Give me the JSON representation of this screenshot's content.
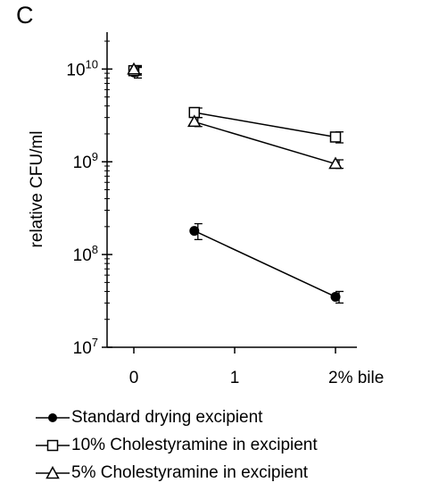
{
  "panel_label": "C",
  "chart_data": {
    "type": "line",
    "title": "",
    "xlabel": "",
    "ylabel": "relative CFU/ml",
    "y_scale": "log",
    "ylim": [
      10000000.0,
      25000000000.0
    ],
    "xlim": [
      -0.25,
      2.25
    ],
    "x_ticks": [
      0,
      1,
      2
    ],
    "x_tick_labels": [
      "0",
      "1",
      "2% bile"
    ],
    "y_ticks": [
      {
        "value": 10000000.0,
        "base": "10",
        "exp": "7"
      },
      {
        "value": 100000000.0,
        "base": "10",
        "exp": "8"
      },
      {
        "value": 1000000000.0,
        "base": "10",
        "exp": "9"
      },
      {
        "value": 10000000000.0,
        "base": "10",
        "exp": "10"
      }
    ],
    "grid": false,
    "legend_position": "bottom",
    "series": [
      {
        "name": "Standard drying excipient",
        "marker": "circle-filled",
        "points": [
          {
            "x": 0,
            "y": 9200000000.0
          },
          {
            "x": 0.6,
            "y": 180000000.0
          },
          {
            "x": 2,
            "y": 35000000.0
          }
        ],
        "err": [
          1200000000.0,
          35000000.0,
          5000000.0
        ]
      },
      {
        "name": "10% Cholestyramine in excipient",
        "marker": "square-open",
        "points": [
          {
            "x": 0,
            "y": 9600000000.0
          },
          {
            "x": 0.6,
            "y": 3400000000.0
          },
          {
            "x": 2,
            "y": 1850000000.0
          }
        ],
        "err": [
          1000000000.0,
          400000000.0,
          250000000.0
        ]
      },
      {
        "name": "5% Cholestyramine in excipient",
        "marker": "triangle-open",
        "points": [
          {
            "x": 0,
            "y": 9900000000.0
          },
          {
            "x": 0.6,
            "y": 2700000000.0
          },
          {
            "x": 2,
            "y": 950000000.0
          }
        ],
        "err": [
          1000000000.0,
          300000000.0,
          100000000.0
        ]
      }
    ]
  }
}
